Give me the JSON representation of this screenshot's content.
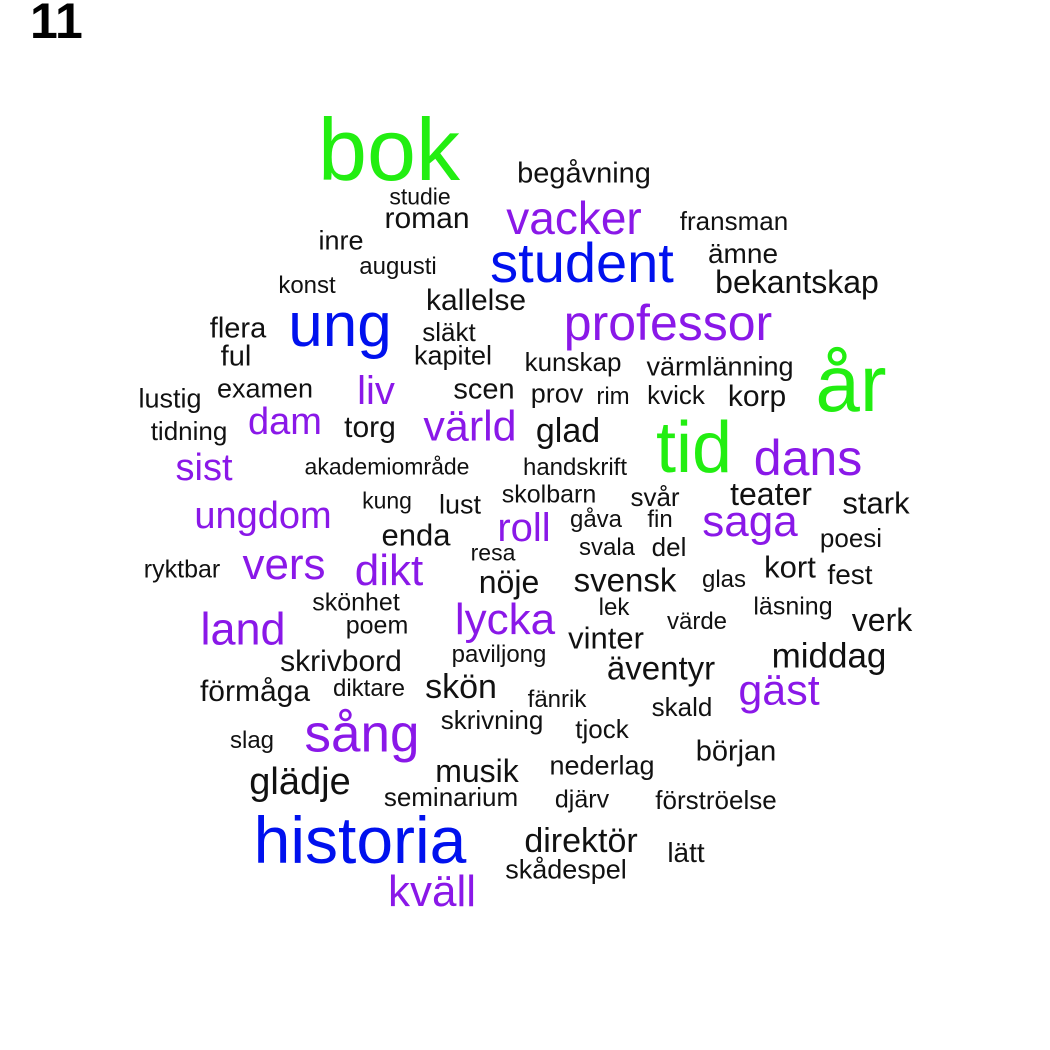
{
  "panel_number": "11",
  "colors": {
    "green": "#22ee11",
    "blue": "#0011ee",
    "purple": "#8a18e8",
    "black": "#111111"
  },
  "words": [
    {
      "text": "bok",
      "color": "green"
    },
    {
      "text": "begåvning",
      "color": "black"
    },
    {
      "text": "studie",
      "color": "black"
    },
    {
      "text": "roman",
      "color": "black"
    },
    {
      "text": "vacker",
      "color": "purple"
    },
    {
      "text": "fransman",
      "color": "black"
    },
    {
      "text": "inre",
      "color": "black"
    },
    {
      "text": "student",
      "color": "blue"
    },
    {
      "text": "ämne",
      "color": "black"
    },
    {
      "text": "augusti",
      "color": "black"
    },
    {
      "text": "bekantskap",
      "color": "black"
    },
    {
      "text": "konst",
      "color": "black"
    },
    {
      "text": "kallelse",
      "color": "black"
    },
    {
      "text": "ung",
      "color": "blue"
    },
    {
      "text": "professor",
      "color": "purple"
    },
    {
      "text": "flera",
      "color": "black"
    },
    {
      "text": "släkt",
      "color": "black"
    },
    {
      "text": "ful",
      "color": "black"
    },
    {
      "text": "kapitel",
      "color": "black"
    },
    {
      "text": "kunskap",
      "color": "black"
    },
    {
      "text": "värmlänning",
      "color": "black"
    },
    {
      "text": "år",
      "color": "green"
    },
    {
      "text": "lustig",
      "color": "black"
    },
    {
      "text": "examen",
      "color": "black"
    },
    {
      "text": "liv",
      "color": "purple"
    },
    {
      "text": "scen",
      "color": "black"
    },
    {
      "text": "prov",
      "color": "black"
    },
    {
      "text": "rim",
      "color": "black"
    },
    {
      "text": "kvick",
      "color": "black"
    },
    {
      "text": "korp",
      "color": "black"
    },
    {
      "text": "tidning",
      "color": "black"
    },
    {
      "text": "dam",
      "color": "purple"
    },
    {
      "text": "torg",
      "color": "black"
    },
    {
      "text": "värld",
      "color": "purple"
    },
    {
      "text": "glad",
      "color": "black"
    },
    {
      "text": "tid",
      "color": "green"
    },
    {
      "text": "dans",
      "color": "purple"
    },
    {
      "text": "sist",
      "color": "purple"
    },
    {
      "text": "akademiområde",
      "color": "black"
    },
    {
      "text": "handskrift",
      "color": "black"
    },
    {
      "text": "teater",
      "color": "black"
    },
    {
      "text": "kung",
      "color": "black"
    },
    {
      "text": "lust",
      "color": "black"
    },
    {
      "text": "skolbarn",
      "color": "black"
    },
    {
      "text": "svår",
      "color": "black"
    },
    {
      "text": "stark",
      "color": "black"
    },
    {
      "text": "ungdom",
      "color": "purple"
    },
    {
      "text": "enda",
      "color": "black"
    },
    {
      "text": "roll",
      "color": "purple"
    },
    {
      "text": "gåva",
      "color": "black"
    },
    {
      "text": "fin",
      "color": "black"
    },
    {
      "text": "saga",
      "color": "purple"
    },
    {
      "text": "poesi",
      "color": "black"
    },
    {
      "text": "resa",
      "color": "black"
    },
    {
      "text": "svala",
      "color": "black"
    },
    {
      "text": "del",
      "color": "black"
    },
    {
      "text": "ryktbar",
      "color": "black"
    },
    {
      "text": "vers",
      "color": "purple"
    },
    {
      "text": "dikt",
      "color": "purple"
    },
    {
      "text": "nöje",
      "color": "black"
    },
    {
      "text": "svensk",
      "color": "black"
    },
    {
      "text": "glas",
      "color": "black"
    },
    {
      "text": "kort",
      "color": "black"
    },
    {
      "text": "fest",
      "color": "black"
    },
    {
      "text": "skönhet",
      "color": "black"
    },
    {
      "text": "lek",
      "color": "black"
    },
    {
      "text": "läsning",
      "color": "black"
    },
    {
      "text": "land",
      "color": "purple"
    },
    {
      "text": "poem",
      "color": "black"
    },
    {
      "text": "lycka",
      "color": "purple"
    },
    {
      "text": "värde",
      "color": "black"
    },
    {
      "text": "verk",
      "color": "black"
    },
    {
      "text": "vinter",
      "color": "black"
    },
    {
      "text": "paviljong",
      "color": "black"
    },
    {
      "text": "middag",
      "color": "black"
    },
    {
      "text": "skrivbord",
      "color": "black"
    },
    {
      "text": "äventyr",
      "color": "black"
    },
    {
      "text": "förmåga",
      "color": "black"
    },
    {
      "text": "diktare",
      "color": "black"
    },
    {
      "text": "skön",
      "color": "black"
    },
    {
      "text": "fänrik",
      "color": "black"
    },
    {
      "text": "gäst",
      "color": "purple"
    },
    {
      "text": "skald",
      "color": "black"
    },
    {
      "text": "skrivning",
      "color": "black"
    },
    {
      "text": "tjock",
      "color": "black"
    },
    {
      "text": "sång",
      "color": "purple"
    },
    {
      "text": "slag",
      "color": "black"
    },
    {
      "text": "början",
      "color": "black"
    },
    {
      "text": "nederlag",
      "color": "black"
    },
    {
      "text": "musik",
      "color": "black"
    },
    {
      "text": "glädje",
      "color": "black"
    },
    {
      "text": "seminarium",
      "color": "black"
    },
    {
      "text": "djärv",
      "color": "black"
    },
    {
      "text": "förströelse",
      "color": "black"
    },
    {
      "text": "historia",
      "color": "blue"
    },
    {
      "text": "direktör",
      "color": "black"
    },
    {
      "text": "lätt",
      "color": "black"
    },
    {
      "text": "skådespel",
      "color": "black"
    },
    {
      "text": "kväll",
      "color": "purple"
    }
  ]
}
